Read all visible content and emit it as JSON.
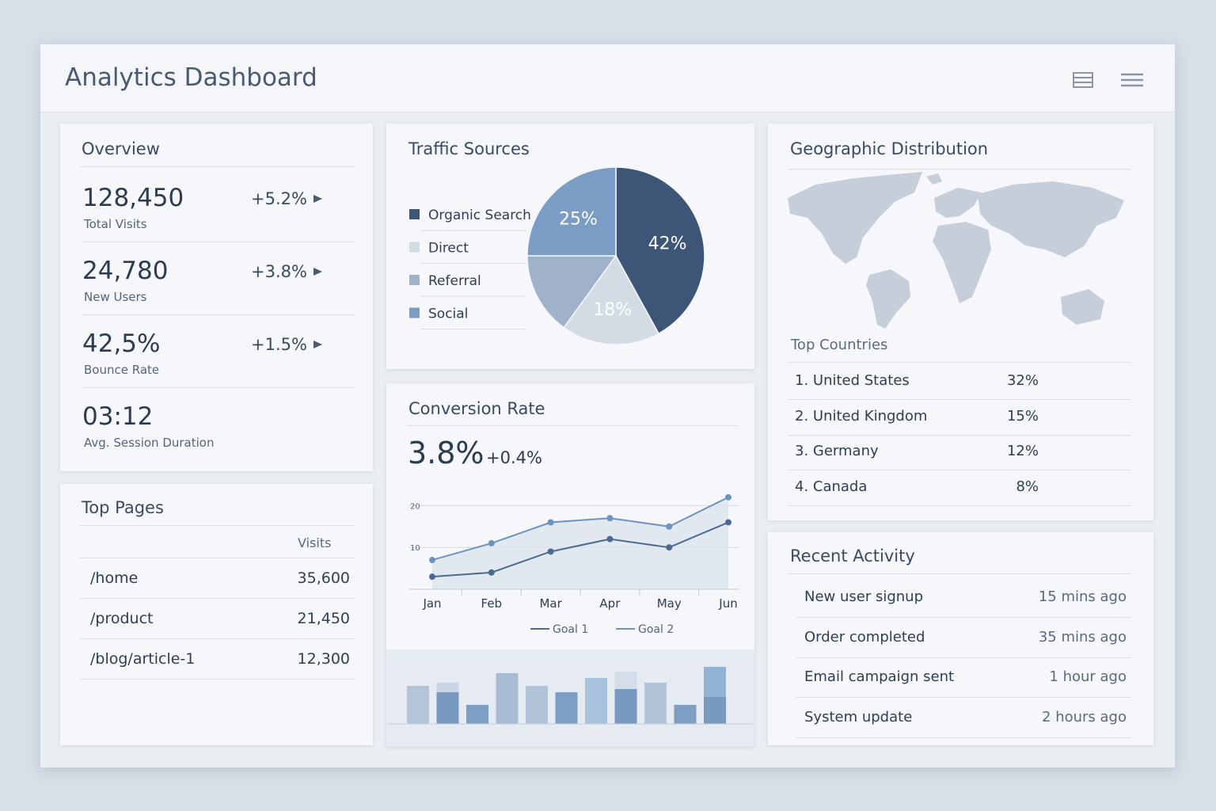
{
  "header": {
    "title": "Analytics Dashboard"
  },
  "overview": {
    "title": "Overview",
    "metrics": [
      {
        "value": "128,450",
        "label": "Total Visits",
        "change": "+5.2%"
      },
      {
        "value": "24,780",
        "label": "New Users",
        "change": "+3.8%"
      },
      {
        "value": "42,5%",
        "label": "Bounce Rate",
        "change": "+1.5%"
      },
      {
        "value": "03:12",
        "label": "Avg. Session Duration"
      }
    ]
  },
  "top_pages": {
    "title": "Top Pages",
    "column": "Visits",
    "rows": [
      [
        "/home",
        "35,600"
      ],
      [
        "/product",
        "21,450"
      ],
      [
        "/blog/article-1",
        "12,300"
      ]
    ]
  },
  "geo": {
    "title": "Geographic Distribution",
    "subtitle": "Top Countries",
    "rows": [
      [
        "1. United States",
        "32%"
      ],
      [
        "2. United Kingdom",
        "15%"
      ],
      [
        "3. Germany",
        "12%"
      ],
      [
        "4. Canada",
        "8%"
      ]
    ]
  },
  "activity": {
    "title": "Recent Activity",
    "rows": [
      [
        "New user signup",
        "15 mins ago"
      ],
      [
        "Order completed",
        "35 mins ago"
      ],
      [
        "Email campaign sent",
        "1 hour ago"
      ],
      [
        "System update",
        "2 hours ago"
      ]
    ]
  },
  "chart_data": [
    {
      "type": "pie",
      "title": "Traffic Sources",
      "categories": [
        "Organic Search",
        "Direct",
        "Referral",
        "Social"
      ],
      "values": [
        42,
        18,
        15,
        25
      ],
      "value_labels": [
        "42%",
        "18%",
        null,
        "25%"
      ],
      "colors": [
        "#3d5576",
        "#d3dbe5",
        "#9fb2ca",
        "#7b9cc4"
      ]
    },
    {
      "type": "line",
      "title": "Conversion Rate",
      "annotations": [
        "3.8%",
        "+0.4%"
      ],
      "categories": [
        "Jan",
        "Feb",
        "Mar",
        "Apr",
        "May",
        "Jun"
      ],
      "ylim": [
        0,
        25
      ],
      "yticks": [
        10,
        20
      ],
      "grid": true,
      "series": [
        {
          "name": "Goal 1",
          "color": "#4a6a92",
          "values": [
            3,
            4,
            9,
            12,
            10,
            16
          ]
        },
        {
          "name": "Goal 2",
          "color": "#6e93c0",
          "values": [
            7,
            11,
            16,
            17,
            15,
            22
          ]
        }
      ]
    },
    {
      "type": "bar",
      "ylim": [
        0,
        80
      ],
      "series": [
        {
          "values": [
            48,
            52,
            24,
            64,
            48,
            40,
            58,
            66,
            52,
            24,
            72
          ],
          "colors": [
            "#b4c5d8",
            "#c9d5e3",
            "#7f9ec3",
            "#a9bcd3",
            "#b2c4d8",
            "#7f9ec3",
            "#a9c2dc",
            "#d5dee8",
            "#b2c4d8",
            "#7f9ec3",
            "#93b3d5"
          ]
        },
        {
          "color": "#7898bf",
          "values": [
            null,
            40,
            null,
            null,
            null,
            null,
            null,
            44,
            null,
            null,
            34
          ]
        }
      ]
    }
  ]
}
